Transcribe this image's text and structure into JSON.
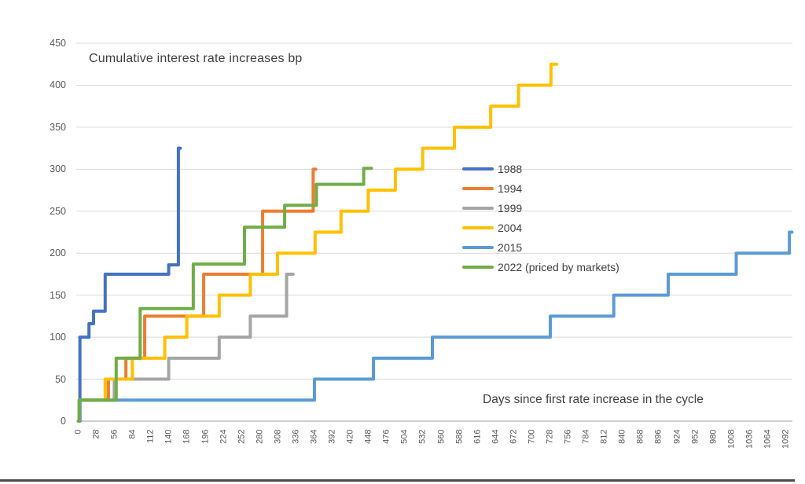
{
  "title": "Cumulative interest rate increases bp",
  "x_axis_title": "Days since first rate increase in the cycle",
  "chart_data": {
    "type": "line",
    "subtype": "step",
    "title": "Cumulative interest rate increases bp",
    "xlabel": "Days since first rate increase in the cycle",
    "ylabel": "Cumulative interest rate increases (bp)",
    "xlim": [
      0,
      1092
    ],
    "ylim": [
      0,
      450
    ],
    "grid": "horizontal",
    "grid_color": "#d9d9d9",
    "axis_line_color": "#bfbfbf",
    "tick_text_color": "#595959",
    "legend_position": "inside-middle-right",
    "x_ticks": [
      0,
      28,
      56,
      84,
      112,
      140,
      168,
      196,
      224,
      252,
      280,
      308,
      336,
      364,
      392,
      420,
      448,
      476,
      504,
      532,
      560,
      588,
      616,
      644,
      672,
      700,
      728,
      756,
      784,
      812,
      840,
      868,
      896,
      924,
      952,
      980,
      1008,
      1036,
      1064,
      1092
    ],
    "y_ticks": [
      0,
      50,
      100,
      150,
      200,
      250,
      300,
      350,
      400,
      450
    ],
    "series": [
      {
        "name": "1988",
        "color": "#4472C4",
        "points": [
          [
            0,
            0
          ],
          [
            2,
            100
          ],
          [
            16,
            116
          ],
          [
            23,
            131
          ],
          [
            41,
            175
          ],
          [
            139,
            186
          ],
          [
            154,
            325
          ]
        ],
        "end_day": 157
      },
      {
        "name": "1994",
        "color": "#ED7D31",
        "points": [
          [
            0,
            0
          ],
          [
            1,
            25
          ],
          [
            46,
            50
          ],
          [
            73,
            75
          ],
          [
            102,
            125
          ],
          [
            193,
            175
          ],
          [
            284,
            250
          ],
          [
            362,
            300
          ]
        ],
        "end_day": 366
      },
      {
        "name": "1999",
        "color": "#A5A5A5",
        "points": [
          [
            0,
            0
          ],
          [
            1,
            25
          ],
          [
            55,
            50
          ],
          [
            139,
            75
          ],
          [
            217,
            100
          ],
          [
            265,
            125
          ],
          [
            321,
            175
          ]
        ],
        "end_day": 331
      },
      {
        "name": "2004",
        "color": "#FFC000",
        "points": [
          [
            0,
            0
          ],
          [
            1,
            25
          ],
          [
            41,
            50
          ],
          [
            83,
            75
          ],
          [
            133,
            100
          ],
          [
            167,
            125
          ],
          [
            217,
            150
          ],
          [
            265,
            175
          ],
          [
            307,
            200
          ],
          [
            365,
            225
          ],
          [
            405,
            250
          ],
          [
            447,
            275
          ],
          [
            489,
            300
          ],
          [
            531,
            325
          ],
          [
            580,
            350
          ],
          [
            636,
            375
          ],
          [
            679,
            400
          ],
          [
            729,
            425
          ]
        ],
        "end_day": 738
      },
      {
        "name": "2015",
        "color": "#5B9BD5",
        "points": [
          [
            0,
            0
          ],
          [
            1,
            25
          ],
          [
            364,
            50
          ],
          [
            455,
            75
          ],
          [
            546,
            100
          ],
          [
            728,
            125
          ],
          [
            826,
            150
          ],
          [
            910,
            175
          ],
          [
            1015,
            200
          ],
          [
            1097,
            225
          ]
        ],
        "end_day": 1101
      },
      {
        "name": "2022 (priced by markets)",
        "color": "#70AD47",
        "points": [
          [
            0,
            0
          ],
          [
            1,
            25
          ],
          [
            58,
            75
          ],
          [
            95,
            134
          ],
          [
            177,
            187
          ],
          [
            256,
            231
          ],
          [
            318,
            257
          ],
          [
            367,
            282
          ],
          [
            440,
            301
          ]
        ],
        "end_day": 452
      }
    ]
  }
}
